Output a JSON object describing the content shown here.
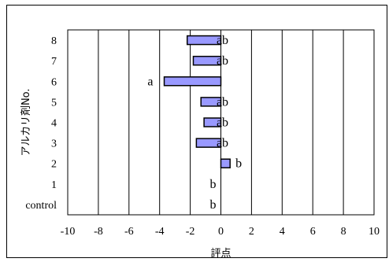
{
  "chart_data": {
    "type": "bar",
    "orientation": "horizontal",
    "title": "",
    "xlabel": "評点",
    "ylabel": "アルカリ剤No.",
    "xlim": [
      -10,
      10
    ],
    "xticks": [
      -10,
      -8,
      -6,
      -4,
      -2,
      0,
      2,
      4,
      6,
      8,
      10
    ],
    "grid": "vertical",
    "bar_color": "#9999ff",
    "categories": [
      "control",
      "1",
      "2",
      "3",
      "4",
      "5",
      "6",
      "7",
      "8"
    ],
    "values": [
      0,
      0,
      0.6,
      -1.6,
      -1.1,
      -1.3,
      -3.7,
      -1.8,
      -2.2
    ],
    "annotations": [
      "b",
      "b",
      "b",
      "ab",
      "ab",
      "ab",
      "a",
      "ab",
      "ab"
    ]
  }
}
